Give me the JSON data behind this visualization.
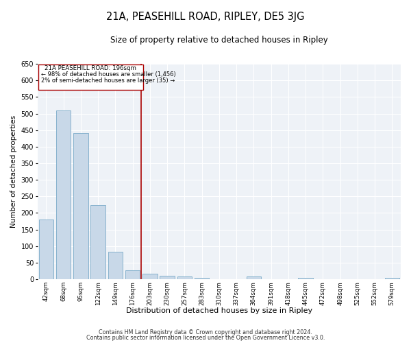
{
  "title": "21A, PEASEHILL ROAD, RIPLEY, DE5 3JG",
  "subtitle": "Size of property relative to detached houses in Ripley",
  "xlabel": "Distribution of detached houses by size in Ripley",
  "ylabel": "Number of detached properties",
  "bar_color": "#c8d8e8",
  "bar_edge_color": "#7aaac8",
  "annotation_line_color": "#aa0000",
  "annotation_box_color": "#aa0000",
  "property_size": 196,
  "annotation_text_line1": "21A PEASEHILL ROAD: 196sqm",
  "annotation_text_line2": "← 98% of detached houses are smaller (1,456)",
  "annotation_text_line3": "2% of semi-detached houses are larger (35) →",
  "categories": [
    "42sqm",
    "68sqm",
    "95sqm",
    "122sqm",
    "149sqm",
    "176sqm",
    "203sqm",
    "230sqm",
    "257sqm",
    "283sqm",
    "310sqm",
    "337sqm",
    "364sqm",
    "391sqm",
    "418sqm",
    "445sqm",
    "472sqm",
    "498sqm",
    "525sqm",
    "552sqm",
    "579sqm"
  ],
  "values": [
    181,
    510,
    441,
    224,
    83,
    28,
    16,
    11,
    8,
    5,
    0,
    0,
    8,
    0,
    0,
    5,
    0,
    0,
    0,
    0,
    5
  ],
  "ylim": [
    0,
    650
  ],
  "yticks": [
    0,
    50,
    100,
    150,
    200,
    250,
    300,
    350,
    400,
    450,
    500,
    550,
    600,
    650
  ],
  "footer_line1": "Contains HM Land Registry data © Crown copyright and database right 2024.",
  "footer_line2": "Contains public sector information licensed under the Open Government Licence v3.0.",
  "background_color": "#eef2f7"
}
